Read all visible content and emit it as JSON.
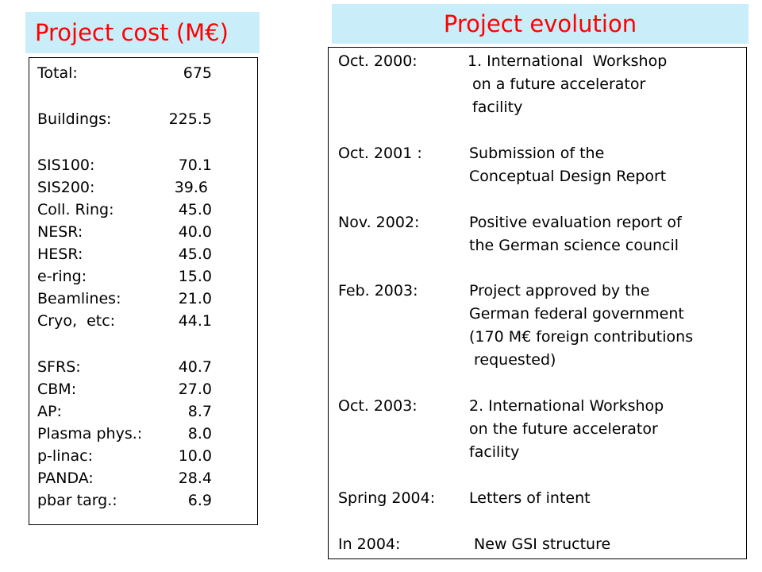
{
  "cost": {
    "title": "Project cost  (M€)",
    "items": [
      {
        "label": "Total:",
        "value": "675"
      },
      {
        "label": "Buildings:",
        "value": "225.5"
      },
      {
        "label": "SIS100:",
        "value": "70.1"
      },
      {
        "label": "SIS200:",
        "value": "39.6"
      },
      {
        "label": "Coll. Ring:",
        "value": "45.0"
      },
      {
        "label": "NESR:",
        "value": "40.0"
      },
      {
        "label": "HESR:",
        "value": "45.0"
      },
      {
        "label": "e-ring:",
        "value": "15.0"
      },
      {
        "label": "Beamlines:",
        "value": "21.0"
      },
      {
        "label": "Cryo,  etc:",
        "value": "44.1"
      },
      {
        "label": "SFRS:",
        "value": "40.7"
      },
      {
        "label": "CBM:",
        "value": "27.0"
      },
      {
        "label": "AP:",
        "value": "8.7"
      },
      {
        "label": "Plasma phys.:",
        "value": "8.0"
      },
      {
        "label": "p-linac:",
        "value": "10.0"
      },
      {
        "label": "PANDA:",
        "value": "28.4"
      },
      {
        "label": "pbar targ.:",
        "value": "6.9"
      }
    ]
  },
  "evolution": {
    "title": "Project evolution",
    "events": [
      {
        "date": "Oct. 2000:",
        "lines": [
          "1. International  Workshop",
          " on a future accelerator",
          " facility"
        ]
      },
      {
        "date": "Oct. 2001 :",
        "lines": [
          "Submission of the",
          "Conceptual Design Report"
        ]
      },
      {
        "date": "Nov. 2002:",
        "lines": [
          "Positive evaluation report of",
          "the German science council"
        ]
      },
      {
        "date": "Feb. 2003:",
        "lines": [
          "Project approved by the",
          "German federal government",
          "(170 M€ foreign contributions",
          " requested)"
        ]
      },
      {
        "date": "Oct. 2003:",
        "lines": [
          "2. International Workshop",
          "on the future accelerator",
          "facility"
        ]
      },
      {
        "date": "Spring 2004:",
        "lines": [
          "Letters of intent"
        ]
      },
      {
        "date": "In 2004:",
        "lines": [
          " New GSI structure"
        ]
      }
    ]
  }
}
